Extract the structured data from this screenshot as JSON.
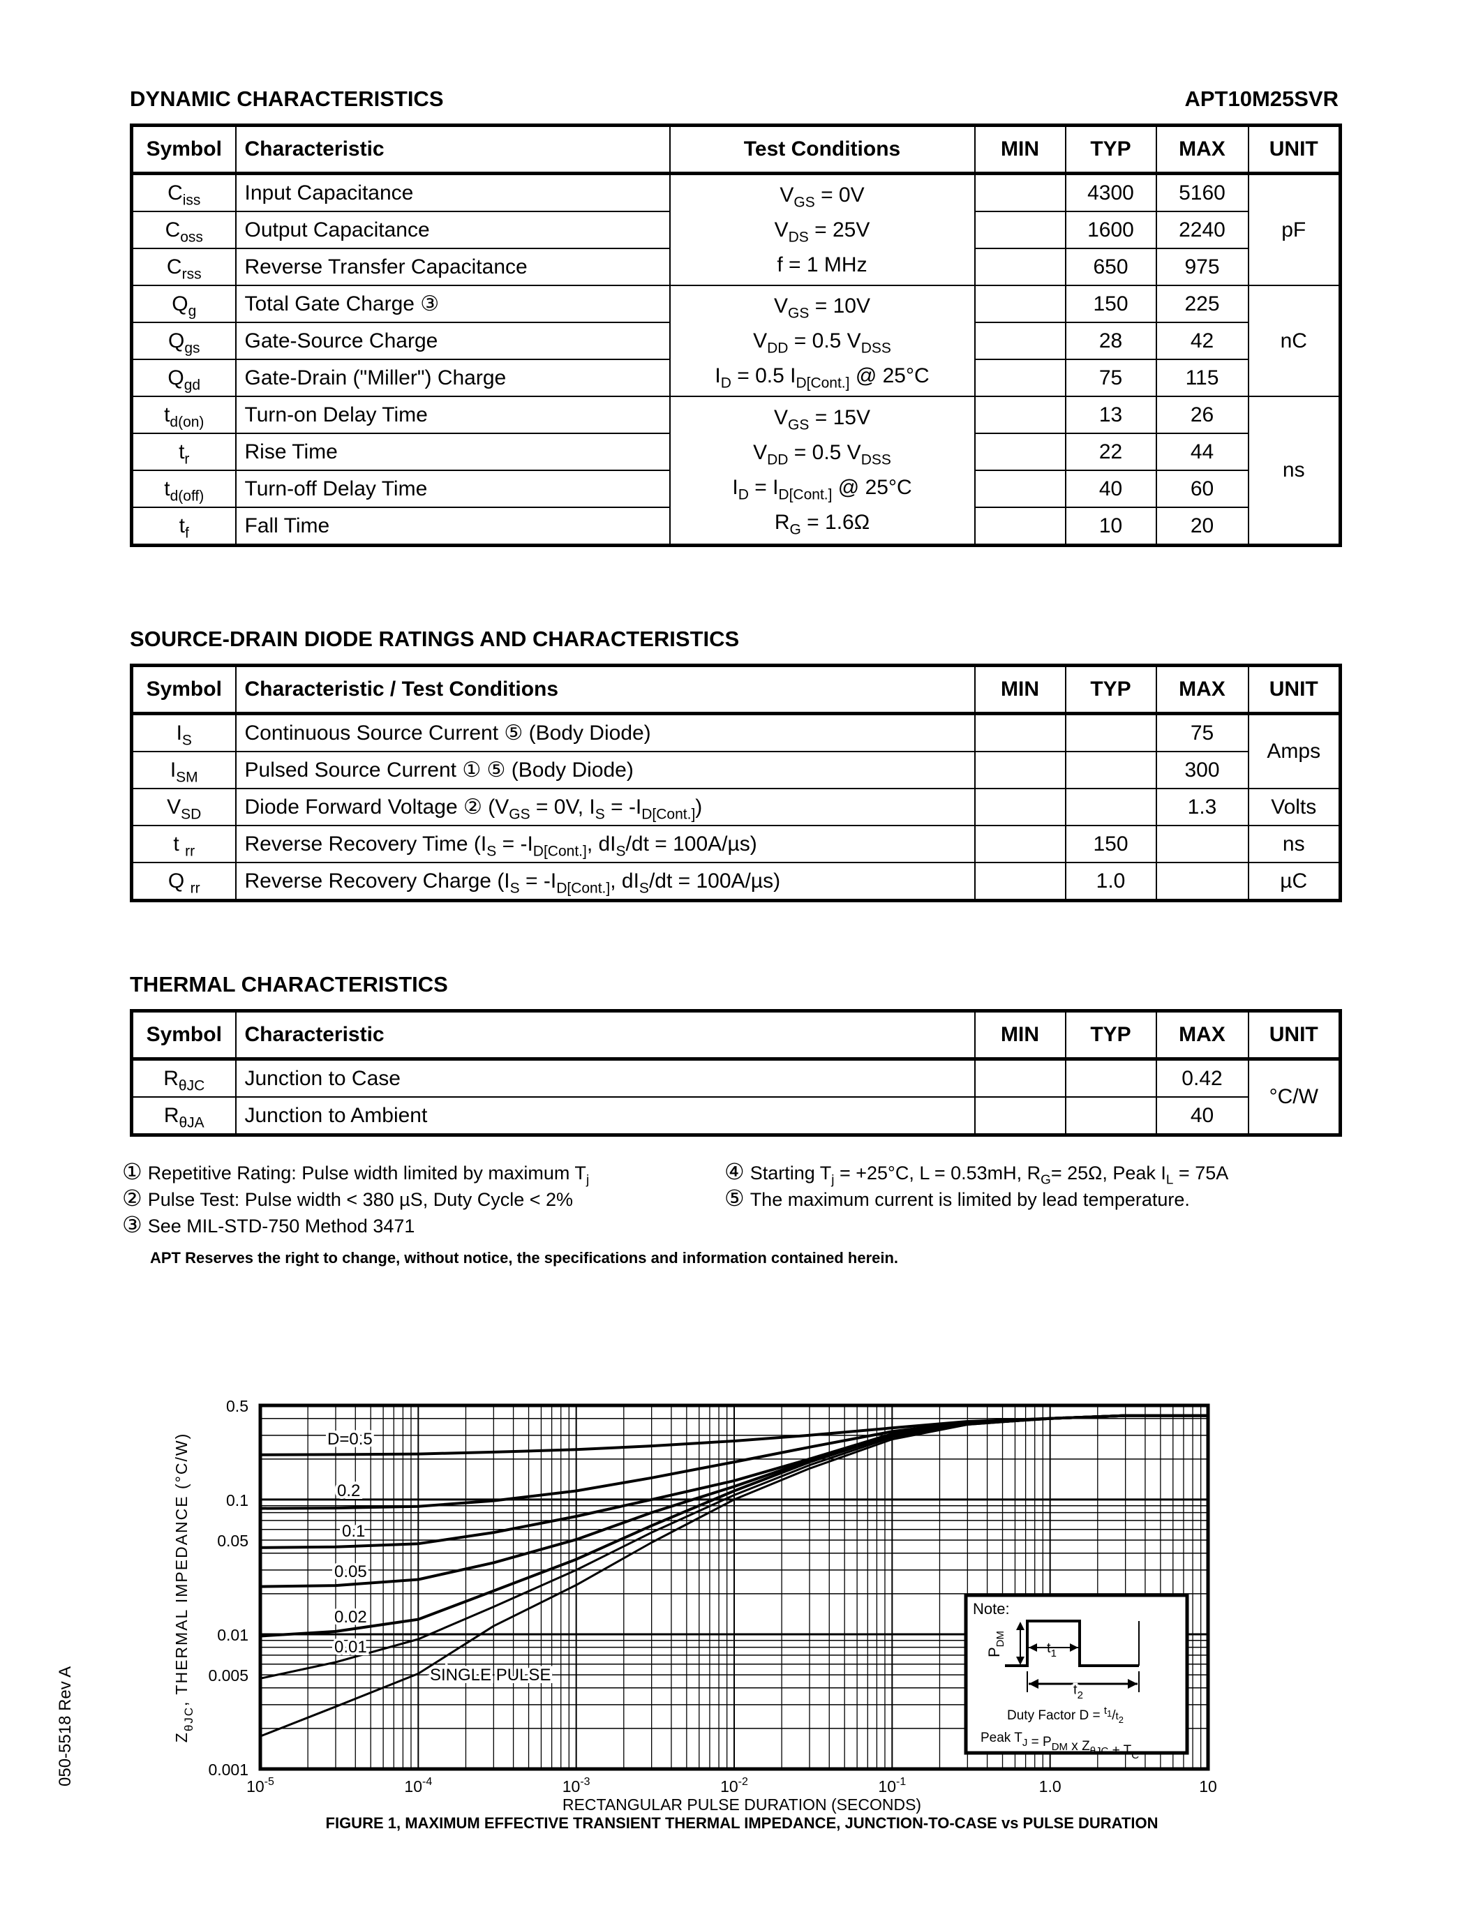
{
  "header": {
    "section_title": "DYNAMIC CHARACTERISTICS",
    "part_number": "APT10M25SVR"
  },
  "dynamic": {
    "columns": [
      "Symbol",
      "Characteristic",
      "Test Conditions",
      "MIN",
      "TYP",
      "MAX",
      "UNIT"
    ],
    "groups": [
      {
        "conditions": [
          [
            "V",
            {
              "sub": "GS"
            },
            " = 0V"
          ],
          [
            "V",
            {
              "sub": "DS"
            },
            " = 25V"
          ],
          [
            "f = 1 MHz"
          ]
        ],
        "unit": "pF",
        "rows": [
          {
            "symbol": [
              "C",
              {
                "sub": "iss"
              }
            ],
            "characteristic": [
              "Input Capacitance"
            ],
            "min": "",
            "typ": "4300",
            "max": "5160"
          },
          {
            "symbol": [
              "C",
              {
                "sub": "oss"
              }
            ],
            "characteristic": [
              "Output Capacitance"
            ],
            "min": "",
            "typ": "1600",
            "max": "2240"
          },
          {
            "symbol": [
              "C",
              {
                "sub": "rss"
              }
            ],
            "characteristic": [
              "Reverse Transfer Capacitance"
            ],
            "min": "",
            "typ": "650",
            "max": "975"
          }
        ]
      },
      {
        "conditions": [
          [
            "V",
            {
              "sub": "GS"
            },
            " = 10V"
          ],
          [
            "V",
            {
              "sub": "DD"
            },
            " = 0.5 V",
            {
              "sub": "DSS"
            }
          ],
          [
            "I",
            {
              "sub": "D"
            },
            " = 0.5 I",
            {
              "sub": "D[Cont.]"
            },
            " @ 25°C"
          ]
        ],
        "unit": "nC",
        "rows": [
          {
            "symbol": [
              "Q",
              {
                "sub": "g"
              }
            ],
            "characteristic": [
              "Total Gate Charge ③"
            ],
            "min": "",
            "typ": "150",
            "max": "225"
          },
          {
            "symbol": [
              "Q",
              {
                "sub": "gs"
              }
            ],
            "characteristic": [
              "Gate-Source Charge"
            ],
            "min": "",
            "typ": "28",
            "max": "42"
          },
          {
            "symbol": [
              "Q",
              {
                "sub": "gd"
              }
            ],
            "characteristic": [
              "Gate-Drain (\"Miller\") Charge"
            ],
            "min": "",
            "typ": "75",
            "max": "115"
          }
        ]
      },
      {
        "conditions": [
          [
            "V",
            {
              "sub": "GS"
            },
            " = 15V"
          ],
          [
            "V",
            {
              "sub": "DD"
            },
            " = 0.5 V",
            {
              "sub": "DSS"
            }
          ],
          [
            "I",
            {
              "sub": "D"
            },
            " = I",
            {
              "sub": "D[Cont.]"
            },
            " @ 25°C"
          ],
          [
            "R",
            {
              "sub": "G"
            },
            " = 1.6Ω"
          ]
        ],
        "unit": "ns",
        "rows": [
          {
            "symbol": [
              "t",
              {
                "sub": "d(on)"
              }
            ],
            "characteristic": [
              "Turn-on Delay Time"
            ],
            "min": "",
            "typ": "13",
            "max": "26"
          },
          {
            "symbol": [
              "t",
              {
                "sub": "r"
              }
            ],
            "characteristic": [
              "Rise Time"
            ],
            "min": "",
            "typ": "22",
            "max": "44"
          },
          {
            "symbol": [
              "t",
              {
                "sub": "d(off)"
              }
            ],
            "characteristic": [
              "Turn-off Delay Time"
            ],
            "min": "",
            "typ": "40",
            "max": "60"
          },
          {
            "symbol": [
              "t",
              {
                "sub": "f"
              }
            ],
            "characteristic": [
              "Fall Time"
            ],
            "min": "",
            "typ": "10",
            "max": "20"
          }
        ]
      }
    ]
  },
  "diode": {
    "title": "SOURCE-DRAIN DIODE RATINGS AND CHARACTERISTICS",
    "columns": [
      "Symbol",
      "Characteristic / Test Conditions",
      "MIN",
      "TYP",
      "MAX",
      "UNIT"
    ],
    "groups": [
      {
        "unit": "Amps",
        "rows": [
          {
            "symbol": [
              "I",
              {
                "sub": "S"
              }
            ],
            "characteristic": [
              "Continuous Source Current ⑤ (Body Diode)"
            ],
            "min": "",
            "typ": "",
            "max": "75"
          },
          {
            "symbol": [
              "I",
              {
                "sub": "SM"
              }
            ],
            "characteristic": [
              "Pulsed Source Current ① ⑤  (Body Diode)"
            ],
            "min": "",
            "typ": "",
            "max": "300"
          }
        ]
      },
      {
        "unit": "Volts",
        "rows": [
          {
            "symbol": [
              "V",
              {
                "sub": "SD"
              }
            ],
            "characteristic": [
              "Diode Forward Voltage ② (V",
              {
                "sub": "GS"
              },
              " = 0V, I",
              {
                "sub": "S"
              },
              " = -I",
              {
                "sub": "D[Cont.]"
              },
              ")"
            ],
            "min": "",
            "typ": "",
            "max": "1.3"
          }
        ]
      },
      {
        "unit": "ns",
        "rows": [
          {
            "symbol": [
              "t ",
              {
                "sub": "rr"
              }
            ],
            "characteristic": [
              "Reverse Recovery Time  (I",
              {
                "sub": "S"
              },
              " = -I",
              {
                "sub": "D[Cont.]"
              },
              ", dI",
              {
                "sub": "S"
              },
              "/dt = 100A/µs)"
            ],
            "min": "",
            "typ": "150",
            "max": ""
          }
        ]
      },
      {
        "unit": "µC",
        "rows": [
          {
            "symbol": [
              "Q ",
              {
                "sub": "rr"
              }
            ],
            "characteristic": [
              "Reverse Recovery Charge  (I",
              {
                "sub": "S"
              },
              " = -I",
              {
                "sub": "D[Cont.]"
              },
              ", dI",
              {
                "sub": "S"
              },
              "/dt = 100A/µs)"
            ],
            "min": "",
            "typ": "1.0",
            "max": ""
          }
        ]
      }
    ]
  },
  "thermal": {
    "title": "THERMAL CHARACTERISTICS",
    "columns": [
      "Symbol",
      "Characteristic",
      "MIN",
      "TYP",
      "MAX",
      "UNIT"
    ],
    "groups": [
      {
        "unit": "°C/W",
        "rows": [
          {
            "symbol": [
              "R",
              {
                "sub": "θJC"
              }
            ],
            "characteristic": [
              "Junction to Case"
            ],
            "min": "",
            "typ": "",
            "max": "0.42"
          },
          {
            "symbol": [
              "R",
              {
                "sub": "θJA"
              }
            ],
            "characteristic": [
              "Junction to Ambient"
            ],
            "min": "",
            "typ": "",
            "max": "40"
          }
        ]
      }
    ]
  },
  "footnotes": [
    {
      "mark": "①",
      "text": [
        "Repetitive Rating: Pulse width limited by maximum T",
        {
          "sub": "j"
        }
      ]
    },
    {
      "mark": "②",
      "text": [
        "Pulse Test: Pulse width < 380 µS, Duty Cycle < 2%"
      ]
    },
    {
      "mark": "③",
      "text": [
        "See MIL-STD-750 Method 3471"
      ]
    },
    {
      "mark": "④",
      "text": [
        "Starting T",
        {
          "sub": "j"
        },
        " = +25°C, L = 0.53mH, R",
        {
          "sub": "G"
        },
        "= 25Ω, Peak I",
        {
          "sub": "L"
        },
        " = 75A"
      ]
    },
    {
      "mark": "⑤",
      "text": [
        "The maximum current is limited by lead temperature."
      ]
    }
  ],
  "disclaimer": "APT Reserves the right to change, without notice, the specifications and information contained herein.",
  "side_code": "050-5518 Rev A",
  "chart_data": {
    "type": "line",
    "title": "FIGURE 1, MAXIMUM EFFECTIVE TRANSIENT THERMAL IMPEDANCE, JUNCTION-TO-CASE vs PULSE DURATION",
    "xlabel": "RECTANGULAR PULSE DURATION (SECONDS)",
    "ylabel": {
      "main": "Z",
      "sub": "θJC",
      "rest": ", THERMAL IMPEDANCE (°C/W)"
    },
    "xscale": "log",
    "yscale": "log",
    "xlim": [
      1e-05,
      10
    ],
    "ylim": [
      0.001,
      0.5
    ],
    "grid": true,
    "xticks": [
      {
        "value": 1e-05,
        "label": "10",
        "exp": "-5"
      },
      {
        "value": 0.0001,
        "label": "10",
        "exp": "-4"
      },
      {
        "value": 0.001,
        "label": "10",
        "exp": "-3"
      },
      {
        "value": 0.01,
        "label": "10",
        "exp": "-2"
      },
      {
        "value": 0.1,
        "label": "10",
        "exp": "-1"
      },
      {
        "value": 1,
        "label": "1.0",
        "exp": ""
      },
      {
        "value": 10,
        "label": "10",
        "exp": ""
      }
    ],
    "yticks": [
      {
        "value": 0.5,
        "label": "0.5"
      },
      {
        "value": 0.1,
        "label": "0.1"
      },
      {
        "value": 0.05,
        "label": "0.05"
      },
      {
        "value": 0.01,
        "label": "0.01"
      },
      {
        "value": 0.005,
        "label": "0.005"
      },
      {
        "value": 0.001,
        "label": "0.001"
      }
    ],
    "x": [
      1e-05,
      3e-05,
      0.0001,
      0.0003,
      0.001,
      0.003,
      0.01,
      0.03,
      0.1,
      0.3,
      1,
      3,
      10
    ],
    "series": [
      {
        "name": "D=0.5",
        "values": [
          0.215,
          0.216,
          0.218,
          0.225,
          0.235,
          0.25,
          0.272,
          0.3,
          0.34,
          0.38,
          0.4,
          0.42,
          0.42
        ]
      },
      {
        "name": "0.2",
        "values": [
          0.086,
          0.0865,
          0.089,
          0.098,
          0.116,
          0.145,
          0.19,
          0.245,
          0.32,
          0.375,
          0.4,
          0.42,
          0.42
        ]
      },
      {
        "name": "0.1",
        "values": [
          0.044,
          0.0445,
          0.047,
          0.057,
          0.075,
          0.1,
          0.138,
          0.2,
          0.307,
          0.37,
          0.4,
          0.42,
          0.42
        ]
      },
      {
        "name": "0.05",
        "values": [
          0.0226,
          0.023,
          0.0255,
          0.034,
          0.0505,
          0.08,
          0.125,
          0.195,
          0.3,
          0.365,
          0.4,
          0.42,
          0.42
        ]
      },
      {
        "name": "0.02",
        "values": [
          0.0097,
          0.0105,
          0.0129,
          0.021,
          0.036,
          0.064,
          0.116,
          0.19,
          0.3,
          0.365,
          0.4,
          0.42,
          0.42
        ]
      },
      {
        "name": "0.01",
        "values": [
          0.0047,
          0.0062,
          0.0092,
          0.016,
          0.03,
          0.057,
          0.108,
          0.18,
          0.29,
          0.36,
          0.4,
          0.42,
          0.42
        ]
      },
      {
        "name": "SINGLE PULSE",
        "values": [
          0.00175,
          0.0029,
          0.0051,
          0.0115,
          0.0232,
          0.048,
          0.1,
          0.17,
          0.28,
          0.36,
          0.4,
          0.42,
          0.42
        ]
      }
    ],
    "note": {
      "heading": "Note:",
      "pdm": "P",
      "pdm_sub": "DM",
      "t1": "t",
      "t1_sub": "1",
      "t2": "t",
      "t2_sub": "2",
      "duty": "Duty Factor  D = ",
      "duty_num": "t",
      "duty_num_sub": "1",
      "duty_den": "t",
      "duty_den_sub": "2",
      "peak": [
        "Peak T",
        {
          "sub": "J"
        },
        " = P",
        {
          "sub": "DM"
        },
        " x Z",
        {
          "sub": "θJC"
        },
        " + T",
        {
          "sub": "C"
        }
      ]
    }
  }
}
